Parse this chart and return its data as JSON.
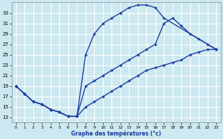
{
  "background_color": "#cce8f0",
  "grid_color": "#aad4e0",
  "line_color": "#1a3b9e",
  "xlabel": "Graphe des températures (°c)",
  "ylim": [
    12,
    35
  ],
  "xlim": [
    -0.5,
    23.5
  ],
  "yticks": [
    13,
    15,
    17,
    19,
    21,
    23,
    25,
    27,
    29,
    31,
    33
  ],
  "xticks": [
    0,
    1,
    2,
    3,
    4,
    5,
    6,
    7,
    8,
    9,
    10,
    11,
    12,
    13,
    14,
    15,
    16,
    17,
    18,
    19,
    20,
    21,
    22,
    23
  ],
  "curve_upper": {
    "x": [
      0,
      1,
      2,
      3,
      4,
      5,
      6,
      7,
      8,
      9,
      10,
      11,
      12,
      13,
      14,
      15,
      16,
      17,
      23
    ],
    "y": [
      19,
      17.5,
      16,
      15.5,
      14.5,
      14,
      13.2,
      13.2,
      25,
      29,
      31,
      32,
      33,
      34,
      34.5,
      34.5,
      34,
      32,
      26
    ]
  },
  "curve_middle": {
    "x": [
      0,
      1,
      2,
      3,
      4,
      5,
      6,
      7,
      8,
      9,
      10,
      11,
      12,
      13,
      14,
      15,
      16,
      17,
      18,
      19,
      20,
      21,
      22,
      23
    ],
    "y": [
      19,
      17.5,
      16,
      15.5,
      14.5,
      14,
      13.2,
      13.2,
      19,
      20,
      21,
      22,
      23,
      24,
      25,
      26,
      27,
      31,
      32,
      30.5,
      29,
      28,
      27,
      26
    ]
  },
  "curve_lower": {
    "x": [
      0,
      1,
      2,
      3,
      4,
      5,
      6,
      7,
      8,
      9,
      10,
      11,
      12,
      13,
      14,
      15,
      16,
      17,
      18,
      19,
      20,
      21,
      22,
      23
    ],
    "y": [
      19,
      17.5,
      16,
      15.5,
      14.5,
      14,
      13.2,
      13.2,
      15,
      16,
      17,
      18,
      19,
      20,
      21,
      22,
      22.5,
      23,
      23.5,
      24,
      25,
      25.5,
      26,
      26
    ]
  }
}
